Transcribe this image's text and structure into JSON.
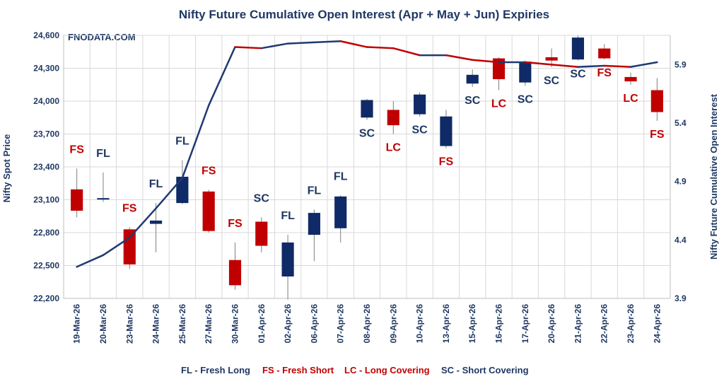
{
  "chart_data": {
    "type": "candlestick+line",
    "title": "Nifty Future Cumulative Open Interest (Apr + May + Jun) Expiries",
    "ylabel_left": "Nifty Spot Price",
    "ylabel_right": "Nifty Future Cumulative Open Interest",
    "watermark": "FNODATA.COM",
    "ylim_left": [
      22200,
      24600
    ],
    "yticks_left": [
      "22,200",
      "22,500",
      "22,800",
      "23,100",
      "23,400",
      "23,700",
      "24,000",
      "24,300",
      "24,600"
    ],
    "ylim_right": [
      3.9,
      6.15
    ],
    "yticks_right": [
      "3.9",
      "4.4",
      "4.9",
      "5.4",
      "5.9"
    ],
    "categories": [
      "19-Mar-26",
      "20-Mar-26",
      "23-Mar-26",
      "24-Mar-26",
      "25-Mar-26",
      "27-Mar-26",
      "30-Mar-26",
      "01-Apr-26",
      "02-Apr-26",
      "06-Apr-26",
      "07-Apr-26",
      "08-Apr-26",
      "09-Apr-26",
      "10-Apr-26",
      "13-Apr-26",
      "15-Apr-26",
      "16-Apr-26",
      "17-Apr-26",
      "20-Apr-26",
      "21-Apr-26",
      "22-Apr-26",
      "23-Apr-26",
      "24-Apr-26"
    ],
    "candles": [
      {
        "open": 23195,
        "high": 23385,
        "low": 22940,
        "close": 23000,
        "signal": "FS"
      },
      {
        "open": 23105,
        "high": 23350,
        "low": 23080,
        "close": 23115,
        "signal": "FL"
      },
      {
        "open": 22830,
        "high": 22850,
        "low": 22470,
        "close": 22510,
        "signal": "FS"
      },
      {
        "open": 22880,
        "high": 23070,
        "low": 22620,
        "close": 22910,
        "signal": "FL"
      },
      {
        "open": 23070,
        "high": 23460,
        "low": 23060,
        "close": 23310,
        "signal": "FL"
      },
      {
        "open": 23175,
        "high": 23190,
        "low": 22800,
        "close": 22815,
        "signal": "FS"
      },
      {
        "open": 22550,
        "high": 22710,
        "low": 22280,
        "close": 22320,
        "signal": "FS"
      },
      {
        "open": 22900,
        "high": 22940,
        "low": 22620,
        "close": 22680,
        "signal": "SC"
      },
      {
        "open": 22400,
        "high": 22780,
        "low": 22190,
        "close": 22710,
        "signal": "FL"
      },
      {
        "open": 22780,
        "high": 23010,
        "low": 22540,
        "close": 22980,
        "signal": "FL"
      },
      {
        "open": 22840,
        "high": 23140,
        "low": 22710,
        "close": 23130,
        "signal": "FL"
      },
      {
        "open": 23850,
        "high": 24020,
        "low": 23830,
        "close": 24010,
        "signal": "SC"
      },
      {
        "open": 23920,
        "high": 24000,
        "low": 23700,
        "close": 23780,
        "signal": "LC"
      },
      {
        "open": 23880,
        "high": 24080,
        "low": 23860,
        "close": 24060,
        "signal": "SC"
      },
      {
        "open": 23590,
        "high": 23920,
        "low": 23570,
        "close": 23860,
        "signal": "FS"
      },
      {
        "open": 24160,
        "high": 24290,
        "low": 24130,
        "close": 24240,
        "signal": "SC"
      },
      {
        "open": 24390,
        "high": 24400,
        "low": 24100,
        "close": 24200,
        "signal": "LC"
      },
      {
        "open": 24170,
        "high": 24370,
        "low": 24140,
        "close": 24360,
        "signal": "SC"
      },
      {
        "open": 24400,
        "high": 24480,
        "low": 24310,
        "close": 24370,
        "signal": "SC"
      },
      {
        "open": 24380,
        "high": 24600,
        "low": 24370,
        "close": 24580,
        "signal": "SC"
      },
      {
        "open": 24480,
        "high": 24520,
        "low": 24380,
        "close": 24390,
        "signal": "FS"
      },
      {
        "open": 24220,
        "high": 24260,
        "low": 24150,
        "close": 24180,
        "signal": "LC"
      },
      {
        "open": 24100,
        "high": 24210,
        "low": 23820,
        "close": 23900,
        "signal": "FS"
      }
    ],
    "open_interest": [
      4.17,
      4.27,
      4.42,
      4.67,
      4.93,
      5.55,
      6.05,
      6.04,
      6.08,
      6.09,
      6.1,
      6.05,
      6.04,
      5.98,
      5.98,
      5.94,
      5.92,
      5.92,
      5.9,
      5.88,
      5.89,
      5.88,
      5.92
    ],
    "legend": {
      "FL": "FL - Fresh Long",
      "FS": "FS - Fresh Short",
      "LC": "LC - Long Covering",
      "SC": "SC - Short Covering"
    },
    "colors": {
      "up": "#0f2a66",
      "down": "#c00000",
      "line_up": "#1f3a72",
      "line_down": "#c00000",
      "grid": "#d9d9d9",
      "text": "#1f3864"
    },
    "grid": true
  }
}
